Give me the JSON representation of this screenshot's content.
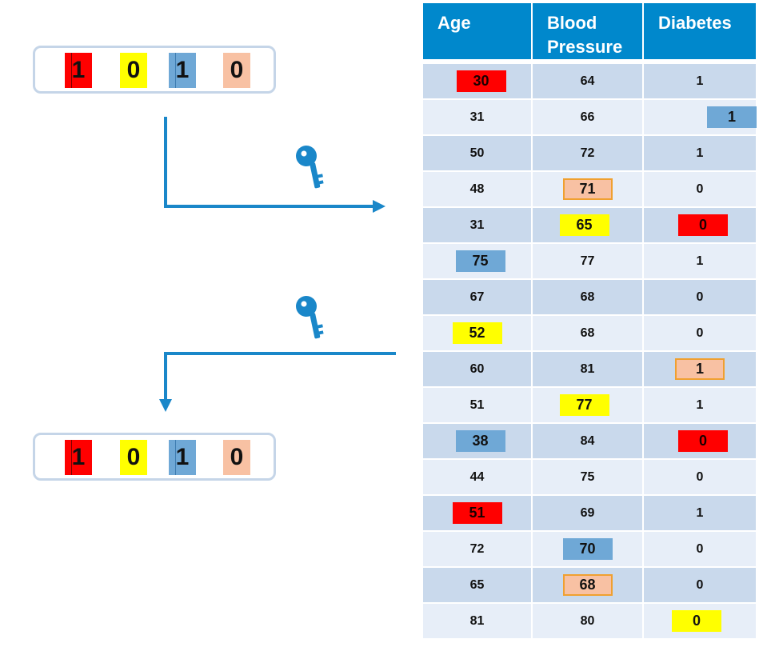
{
  "colors": {
    "red": "#ff0000",
    "yellow": "#ffff00",
    "blue": "#6fa8d6",
    "peach": "#f8c1a3",
    "arrow": "#1a87c9",
    "header": "#0088cc"
  },
  "encoded_bits": [
    "1",
    "0",
    "1",
    "0"
  ],
  "decoded_bits": [
    "1",
    "0",
    "1",
    "0"
  ],
  "icons": {
    "key": "key-icon"
  },
  "table": {
    "headers": [
      "Age",
      "Blood Pressure",
      "Diabetes"
    ],
    "rows": [
      [
        "30",
        "64",
        "1"
      ],
      [
        "31",
        "66",
        "1"
      ],
      [
        "50",
        "72",
        "1"
      ],
      [
        "48",
        "71",
        "0"
      ],
      [
        "31",
        "65",
        "0"
      ],
      [
        "75",
        "77",
        "1"
      ],
      [
        "67",
        "68",
        "0"
      ],
      [
        "52",
        "68",
        "0"
      ],
      [
        "60",
        "81",
        "1"
      ],
      [
        "51",
        "77",
        "1"
      ],
      [
        "38",
        "84",
        "0"
      ],
      [
        "44",
        "75",
        "0"
      ],
      [
        "51",
        "69",
        "1"
      ],
      [
        "72",
        "70",
        "0"
      ],
      [
        "65",
        "68",
        "0"
      ],
      [
        "81",
        "80",
        "0"
      ]
    ],
    "highlights": [
      [
        [
          "red",
          5
        ],
        null,
        null
      ],
      [
        null,
        null,
        [
          "blue",
          40
        ]
      ],
      [
        null,
        null,
        null
      ],
      [
        null,
        [
          "peach",
          0
        ],
        null
      ],
      [
        null,
        [
          "yellow",
          -4
        ],
        [
          "red",
          4
        ]
      ],
      [
        [
          "blue",
          4
        ],
        null,
        null
      ],
      [
        null,
        null,
        null
      ],
      [
        [
          "yellow",
          0
        ],
        null,
        null
      ],
      [
        null,
        null,
        [
          "peach",
          0
        ]
      ],
      [
        null,
        [
          "yellow",
          -4
        ],
        null
      ],
      [
        [
          "blue",
          4
        ],
        null,
        [
          "red",
          4
        ]
      ],
      [
        null,
        null,
        null
      ],
      [
        [
          "red",
          0
        ],
        null,
        null
      ],
      [
        null,
        [
          "blue",
          0
        ],
        null
      ],
      [
        null,
        [
          "peach",
          0
        ],
        null
      ],
      [
        null,
        null,
        [
          "yellow",
          -4
        ]
      ]
    ]
  }
}
